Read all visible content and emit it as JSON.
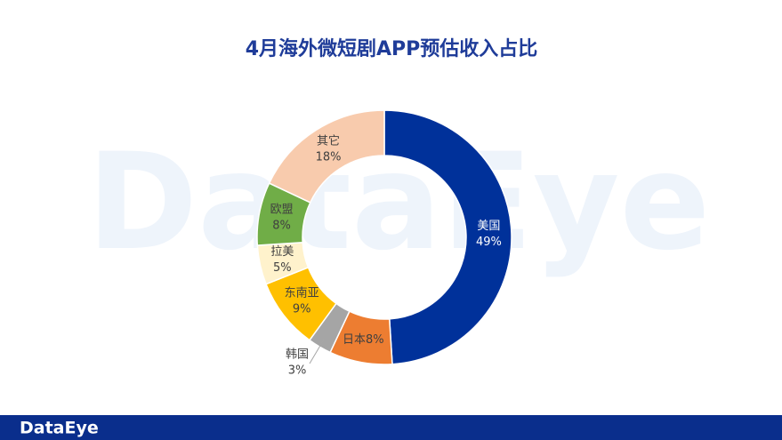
{
  "chart_data": {
    "type": "donut",
    "title": "4月海外微短剧APP预估收入占比",
    "categories": [
      "美国",
      "日本",
      "韩国",
      "东南亚",
      "拉美",
      "欧盟",
      "其它"
    ],
    "values": [
      49,
      8,
      3,
      9,
      5,
      8,
      18
    ],
    "value_labels": [
      "49%",
      "8%",
      "3%",
      "9%",
      "5%",
      "8%",
      "18%"
    ],
    "colors": [
      "#00319a",
      "#ed7d31",
      "#a5a5a5",
      "#ffc000",
      "#fff2cc",
      "#70ad47",
      "#f8cbad"
    ],
    "label_colors": [
      "#ffffff",
      "#404040",
      "#404040",
      "#404040",
      "#404040",
      "#404040",
      "#404040"
    ]
  },
  "watermark": "DataEye",
  "footer": {
    "logo": "DataEye"
  }
}
